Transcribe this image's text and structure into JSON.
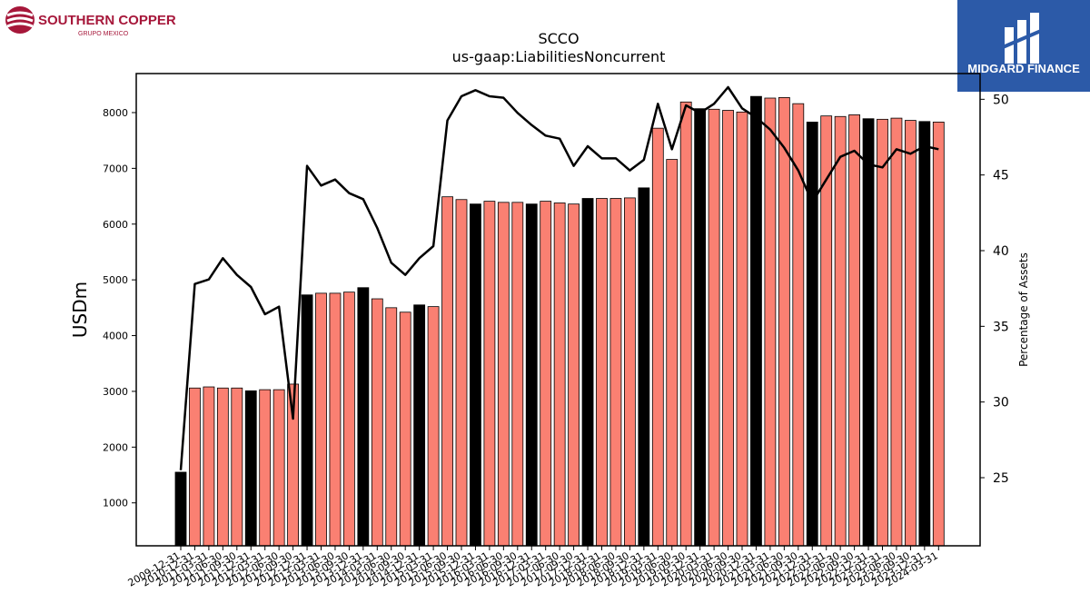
{
  "logos": {
    "left": {
      "name": "SOUTHERN COPPER",
      "sub": "GRUPO MEXICO",
      "color": "#a6173a"
    },
    "right": {
      "name": "MIDGARD FINANCE",
      "background": "#2c5aa8",
      "color": "#ffffff"
    }
  },
  "chart_data": {
    "type": "bar",
    "title": "SCCO",
    "subtitle": "us-gaap:LiabilitiesNoncurrent",
    "ylabel": "USDm",
    "y2label": "Percentage of Assets",
    "ylim": [
      230,
      8700
    ],
    "y2lim": [
      20.5,
      51.7
    ],
    "yticks": [
      1000,
      2000,
      3000,
      4000,
      5000,
      6000,
      7000,
      8000
    ],
    "y2ticks": [
      25,
      30,
      35,
      40,
      45,
      50
    ],
    "colors": {
      "annual": "#000000",
      "quarterly": "#fa8072",
      "line": "#000000"
    },
    "categories": [
      "2009-12-31",
      "2010-12-31",
      "2011-03-31",
      "2011-06-30",
      "2011-09-30",
      "2011-12-31",
      "2012-03-31",
      "2012-06-30",
      "2012-09-30",
      "2012-12-31",
      "2013-03-31",
      "2013-06-30",
      "2013-09-30",
      "2013-12-31",
      "2014-03-31",
      "2014-06-30",
      "2014-09-30",
      "2014-12-31",
      "2015-03-31",
      "2015-06-30",
      "2015-09-30",
      "2015-12-31",
      "2016-03-31",
      "2016-06-30",
      "2016-09-30",
      "2016-12-31",
      "2017-03-31",
      "2017-06-30",
      "2017-09-30",
      "2017-12-31",
      "2018-03-31",
      "2018-06-30",
      "2018-09-30",
      "2018-12-31",
      "2019-03-31",
      "2019-06-30",
      "2019-09-30",
      "2019-12-31",
      "2020-03-31",
      "2020-06-30",
      "2020-09-30",
      "2020-12-31",
      "2021-03-31",
      "2021-06-30",
      "2021-09-30",
      "2021-12-31",
      "2022-03-31",
      "2022-06-30",
      "2022-09-30",
      "2022-12-31",
      "2023-03-31",
      "2023-06-30",
      "2023-09-30",
      "2023-12-31",
      "2024-03-31"
    ],
    "bar_types": [
      "A",
      "Q",
      "Q",
      "Q",
      "Q",
      "A",
      "Q",
      "Q",
      "Q",
      "A",
      "Q",
      "Q",
      "Q",
      "A",
      "Q",
      "Q",
      "Q",
      "A",
      "Q",
      "Q",
      "Q",
      "A",
      "Q",
      "Q",
      "Q",
      "A",
      "Q",
      "Q",
      "Q",
      "A",
      "Q",
      "Q",
      "Q",
      "A",
      "Q",
      "Q",
      "Q",
      "A",
      "Q",
      "Q",
      "Q",
      "A",
      "Q",
      "Q",
      "Q",
      "A",
      "Q",
      "Q",
      "Q",
      "A",
      "Q",
      "Q",
      "Q",
      "A",
      "Q"
    ],
    "values": [
      1550,
      3060,
      3080,
      3060,
      3060,
      3010,
      3030,
      3030,
      3130,
      4730,
      4760,
      4760,
      4780,
      4860,
      4660,
      4500,
      4420,
      4550,
      4520,
      6490,
      6440,
      6360,
      6410,
      6390,
      6390,
      6360,
      6410,
      6380,
      6360,
      6460,
      6460,
      6460,
      6470,
      6650,
      7720,
      7160,
      8190,
      8070,
      8060,
      8040,
      8010,
      8290,
      8260,
      8270,
      8160,
      7830,
      7940,
      7930,
      7960,
      7890,
      7880,
      7900,
      7860,
      7840,
      7830
    ],
    "percent_of_assets": [
      25.5,
      37.8,
      38.1,
      39.5,
      38.4,
      37.6,
      35.8,
      36.3,
      28.9,
      45.6,
      44.3,
      44.7,
      43.8,
      43.4,
      41.5,
      39.2,
      38.4,
      39.5,
      40.3,
      48.6,
      50.2,
      50.6,
      50.2,
      50.1,
      49.1,
      48.3,
      47.6,
      47.4,
      45.6,
      46.9,
      46.1,
      46.1,
      45.3,
      46.0,
      49.7,
      46.7,
      49.6,
      49.1,
      49.7,
      50.8,
      49.4,
      48.8,
      48.0,
      46.8,
      45.3,
      43.2,
      44.7,
      46.2,
      46.6,
      45.7,
      45.5,
      46.7,
      46.4,
      46.9,
      46.7
    ]
  }
}
